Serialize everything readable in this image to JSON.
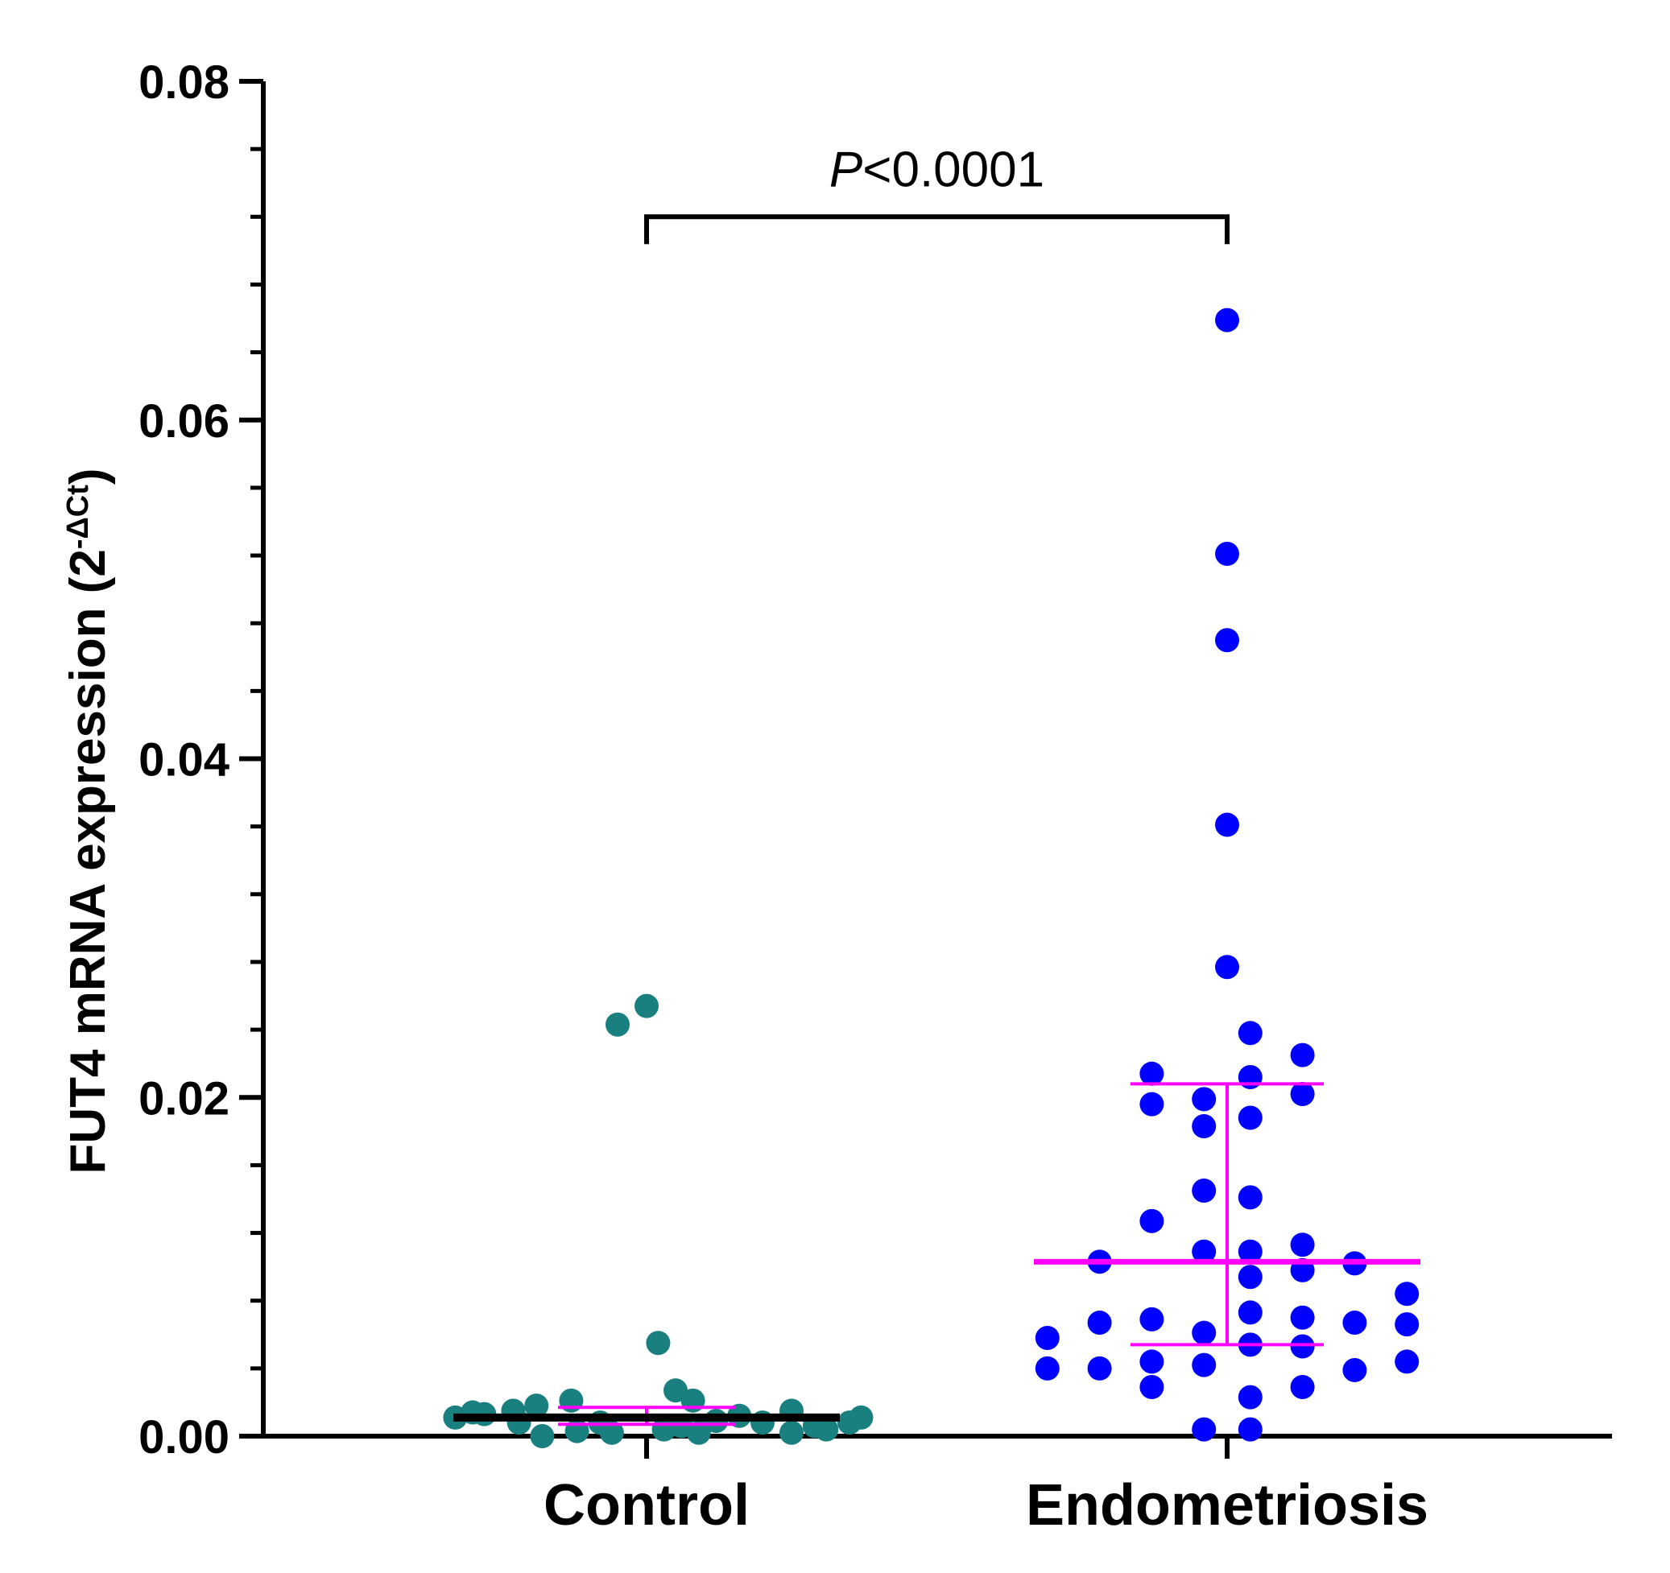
{
  "chart_data": {
    "type": "scatter",
    "title": "",
    "ylabel": {
      "text": "FUT4 mRNA expression (2",
      "superscript": "-ΔCt",
      "close": ")"
    },
    "xlabel": "",
    "ylim": [
      0,
      0.08
    ],
    "y_ticks": [
      "0.00",
      "0.02",
      "0.04",
      "0.06",
      "0.08"
    ],
    "y_tick_values": [
      0,
      0.02,
      0.04,
      0.06,
      0.08
    ],
    "y_minor_step": 0.004,
    "categories": [
      "Control",
      "Endometriosis"
    ],
    "series": [
      {
        "name": "Control",
        "color": "#1a7f7f",
        "median_color": "#000000",
        "error_color": "#ff00ff",
        "median": 0.0011,
        "iqr": [
          0.0007,
          0.0017
        ],
        "points": [
          {
            "dx": -0.05,
            "y": 0.0243
          },
          {
            "dx": 0.0,
            "y": 0.0254
          },
          {
            "dx": 0.02,
            "y": 0.0055
          },
          {
            "dx": 0.05,
            "y": 0.0027
          },
          {
            "dx": 0.08,
            "y": 0.0021
          },
          {
            "dx": -0.13,
            "y": 0.0021
          },
          {
            "dx": -0.19,
            "y": 0.0018
          },
          {
            "dx": -0.23,
            "y": 0.0015
          },
          {
            "dx": -0.28,
            "y": 0.0013
          },
          {
            "dx": -0.33,
            "y": 0.0011
          },
          {
            "dx": -0.3,
            "y": 0.0014
          },
          {
            "dx": -0.18,
            "y": 0.0
          },
          {
            "dx": -0.12,
            "y": 0.0003
          },
          {
            "dx": -0.06,
            "y": 0.0002
          },
          {
            "dx": -0.08,
            "y": 0.0008
          },
          {
            "dx": 0.03,
            "y": 0.0004
          },
          {
            "dx": 0.06,
            "y": 0.0006
          },
          {
            "dx": 0.12,
            "y": 0.0009
          },
          {
            "dx": 0.16,
            "y": 0.0012
          },
          {
            "dx": 0.2,
            "y": 0.0008
          },
          {
            "dx": 0.25,
            "y": 0.0002
          },
          {
            "dx": 0.29,
            "y": 0.0006
          },
          {
            "dx": 0.25,
            "y": 0.0015
          },
          {
            "dx": 0.31,
            "y": 0.0004
          },
          {
            "dx": 0.35,
            "y": 0.0008
          },
          {
            "dx": 0.37,
            "y": 0.0011
          },
          {
            "dx": -0.22,
            "y": 0.0008
          },
          {
            "dx": 0.09,
            "y": 0.0002
          }
        ]
      },
      {
        "name": "Endometriosis",
        "color": "#0000ff",
        "median_color": "#ff00ff",
        "error_color": "#ff00ff",
        "median": 0.0103,
        "iqr": [
          0.0054,
          0.0208
        ],
        "points": [
          {
            "dx": 0.0,
            "y": 0.0659
          },
          {
            "dx": 0.0,
            "y": 0.0521
          },
          {
            "dx": 0.0,
            "y": 0.047
          },
          {
            "dx": 0.0,
            "y": 0.0361
          },
          {
            "dx": 0.0,
            "y": 0.0277
          },
          {
            "dx": 0.04,
            "y": 0.0238
          },
          {
            "dx": 0.13,
            "y": 0.0225
          },
          {
            "dx": -0.13,
            "y": 0.0214
          },
          {
            "dx": 0.04,
            "y": 0.0212
          },
          {
            "dx": 0.13,
            "y": 0.0202
          },
          {
            "dx": -0.04,
            "y": 0.0199
          },
          {
            "dx": -0.13,
            "y": 0.0196
          },
          {
            "dx": 0.04,
            "y": 0.0188
          },
          {
            "dx": -0.04,
            "y": 0.0183
          },
          {
            "dx": -0.04,
            "y": 0.0145
          },
          {
            "dx": 0.04,
            "y": 0.0141
          },
          {
            "dx": -0.13,
            "y": 0.0127
          },
          {
            "dx": 0.13,
            "y": 0.0113
          },
          {
            "dx": -0.04,
            "y": 0.0109
          },
          {
            "dx": 0.04,
            "y": 0.0109
          },
          {
            "dx": -0.22,
            "y": 0.0103
          },
          {
            "dx": 0.22,
            "y": 0.0102
          },
          {
            "dx": 0.13,
            "y": 0.0098
          },
          {
            "dx": 0.04,
            "y": 0.0094
          },
          {
            "dx": 0.31,
            "y": 0.0084
          },
          {
            "dx": 0.04,
            "y": 0.0073
          },
          {
            "dx": -0.13,
            "y": 0.0069
          },
          {
            "dx": 0.13,
            "y": 0.007
          },
          {
            "dx": -0.22,
            "y": 0.0067
          },
          {
            "dx": 0.22,
            "y": 0.0067
          },
          {
            "dx": 0.31,
            "y": 0.0066
          },
          {
            "dx": -0.04,
            "y": 0.0061
          },
          {
            "dx": -0.31,
            "y": 0.0058
          },
          {
            "dx": 0.04,
            "y": 0.0054
          },
          {
            "dx": 0.13,
            "y": 0.0053
          },
          {
            "dx": -0.13,
            "y": 0.0044
          },
          {
            "dx": -0.04,
            "y": 0.0042
          },
          {
            "dx": 0.31,
            "y": 0.0044
          },
          {
            "dx": -0.31,
            "y": 0.004
          },
          {
            "dx": -0.22,
            "y": 0.004
          },
          {
            "dx": 0.22,
            "y": 0.0039
          },
          {
            "dx": -0.13,
            "y": 0.0029
          },
          {
            "dx": 0.13,
            "y": 0.0029
          },
          {
            "dx": 0.04,
            "y": 0.0023
          },
          {
            "dx": -0.04,
            "y": 0.0004
          },
          {
            "dx": 0.04,
            "y": 0.0004
          }
        ]
      }
    ],
    "annotations": [
      {
        "type": "significance_bracket",
        "from": "Control",
        "to": "Endometriosis",
        "y": 0.072,
        "text_italic": "P",
        "text": "<0.0001"
      }
    ]
  }
}
